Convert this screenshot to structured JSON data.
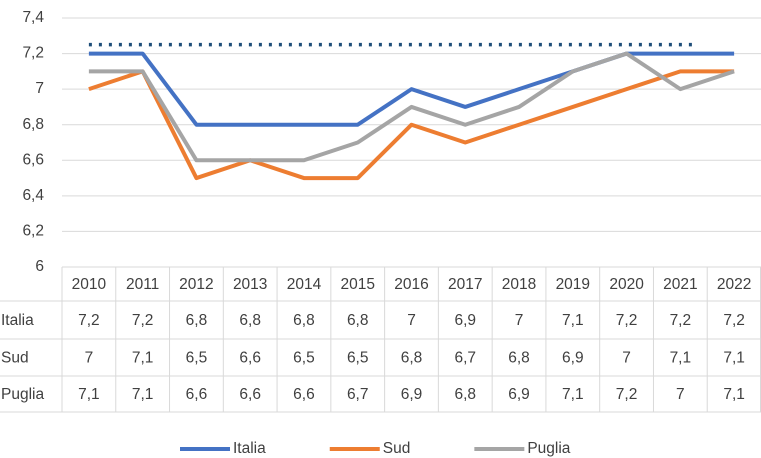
{
  "chart_data": {
    "type": "line",
    "categories": [
      "2010",
      "2011",
      "2012",
      "2013",
      "2014",
      "2015",
      "2016",
      "2017",
      "2018",
      "2019",
      "2020",
      "2021",
      "2022"
    ],
    "series": [
      {
        "name": "Italia",
        "color": "#4472c4",
        "values": [
          7.2,
          7.2,
          6.8,
          6.8,
          6.8,
          6.8,
          7,
          6.9,
          7,
          7.1,
          7.2,
          7.2,
          7.2
        ],
        "value_labels": [
          "7,2",
          "7,2",
          "6,8",
          "6,8",
          "6,8",
          "6,8",
          "7",
          "6,9",
          "7",
          "7,1",
          "7,2",
          "7,2",
          "7,2"
        ]
      },
      {
        "name": "Sud",
        "color": "#ed7d31",
        "values": [
          7,
          7.1,
          6.5,
          6.6,
          6.5,
          6.5,
          6.8,
          6.7,
          6.8,
          6.9,
          7,
          7.1,
          7.1
        ],
        "value_labels": [
          "7",
          "7,1",
          "6,5",
          "6,6",
          "6,5",
          "6,5",
          "6,8",
          "6,7",
          "6,8",
          "6,9",
          "7",
          "7,1",
          "7,1"
        ]
      },
      {
        "name": "Puglia",
        "color": "#a5a5a5",
        "values": [
          7.1,
          7.1,
          6.6,
          6.6,
          6.6,
          6.7,
          6.9,
          6.8,
          6.9,
          7.1,
          7.2,
          7,
          7.1
        ],
        "value_labels": [
          "7,1",
          "7,1",
          "6,6",
          "6,6",
          "6,6",
          "6,7",
          "6,9",
          "6,8",
          "6,9",
          "7,1",
          "7,2",
          "7",
          "7,1"
        ]
      }
    ],
    "reference_line": {
      "value": 7.25,
      "color": "#1f4e79",
      "style": "dotted",
      "x_range": [
        "2010",
        "2021"
      ]
    },
    "ylim": [
      6,
      7.4
    ],
    "yticks": [
      6,
      {
        "value": 6.2,
        "label": "6,2"
      },
      {
        "value": 6.4,
        "label": "6,4"
      },
      {
        "value": 6.6,
        "label": "6,6"
      },
      {
        "value": 6.8,
        "label": "6,8"
      },
      7,
      {
        "value": 7.2,
        "label": "7,2"
      },
      {
        "value": 7.4,
        "label": "7,4"
      }
    ],
    "grid": true,
    "legend": "bottom"
  }
}
